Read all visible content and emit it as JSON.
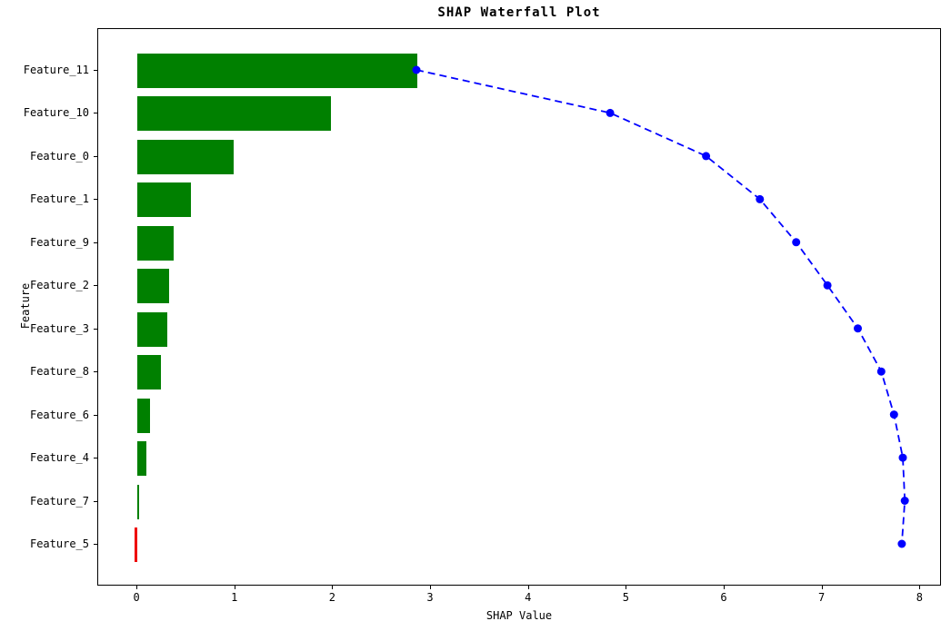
{
  "chart_data": {
    "type": "bar",
    "orientation": "horizontal",
    "title": "SHAP Waterfall Plot",
    "xlabel": "SHAP Value",
    "ylabel": "Feature",
    "categories": [
      "Feature_11",
      "Feature_10",
      "Feature_0",
      "Feature_1",
      "Feature_9",
      "Feature_2",
      "Feature_3",
      "Feature_8",
      "Feature_6",
      "Feature_4",
      "Feature_7",
      "Feature_5"
    ],
    "values": [
      2.86,
      1.98,
      0.98,
      0.55,
      0.37,
      0.32,
      0.31,
      0.24,
      0.13,
      0.09,
      0.02,
      -0.03
    ],
    "series": [
      {
        "name": "shap_value_bars",
        "values": [
          2.86,
          1.98,
          0.98,
          0.55,
          0.37,
          0.32,
          0.31,
          0.24,
          0.13,
          0.09,
          0.02,
          -0.03
        ]
      },
      {
        "name": "cumulative_line",
        "values": [
          2.86,
          4.84,
          5.82,
          6.37,
          6.74,
          7.06,
          7.37,
          7.61,
          7.74,
          7.83,
          7.85,
          7.82
        ]
      }
    ],
    "x_ticks": [
      "0",
      "1",
      "2",
      "3",
      "4",
      "5",
      "6",
      "7",
      "8"
    ],
    "xlim": [
      -0.4,
      8.22
    ],
    "grid": false,
    "legend": false,
    "line_style": "dashed",
    "marker_style": "circle",
    "colors": {
      "bar_positive": "#008000",
      "bar_negative": "#ee0000",
      "line": "#0000ff",
      "marker": "#0000ff",
      "axis": "#000000",
      "text": "#000000",
      "background": "#ffffff"
    }
  }
}
